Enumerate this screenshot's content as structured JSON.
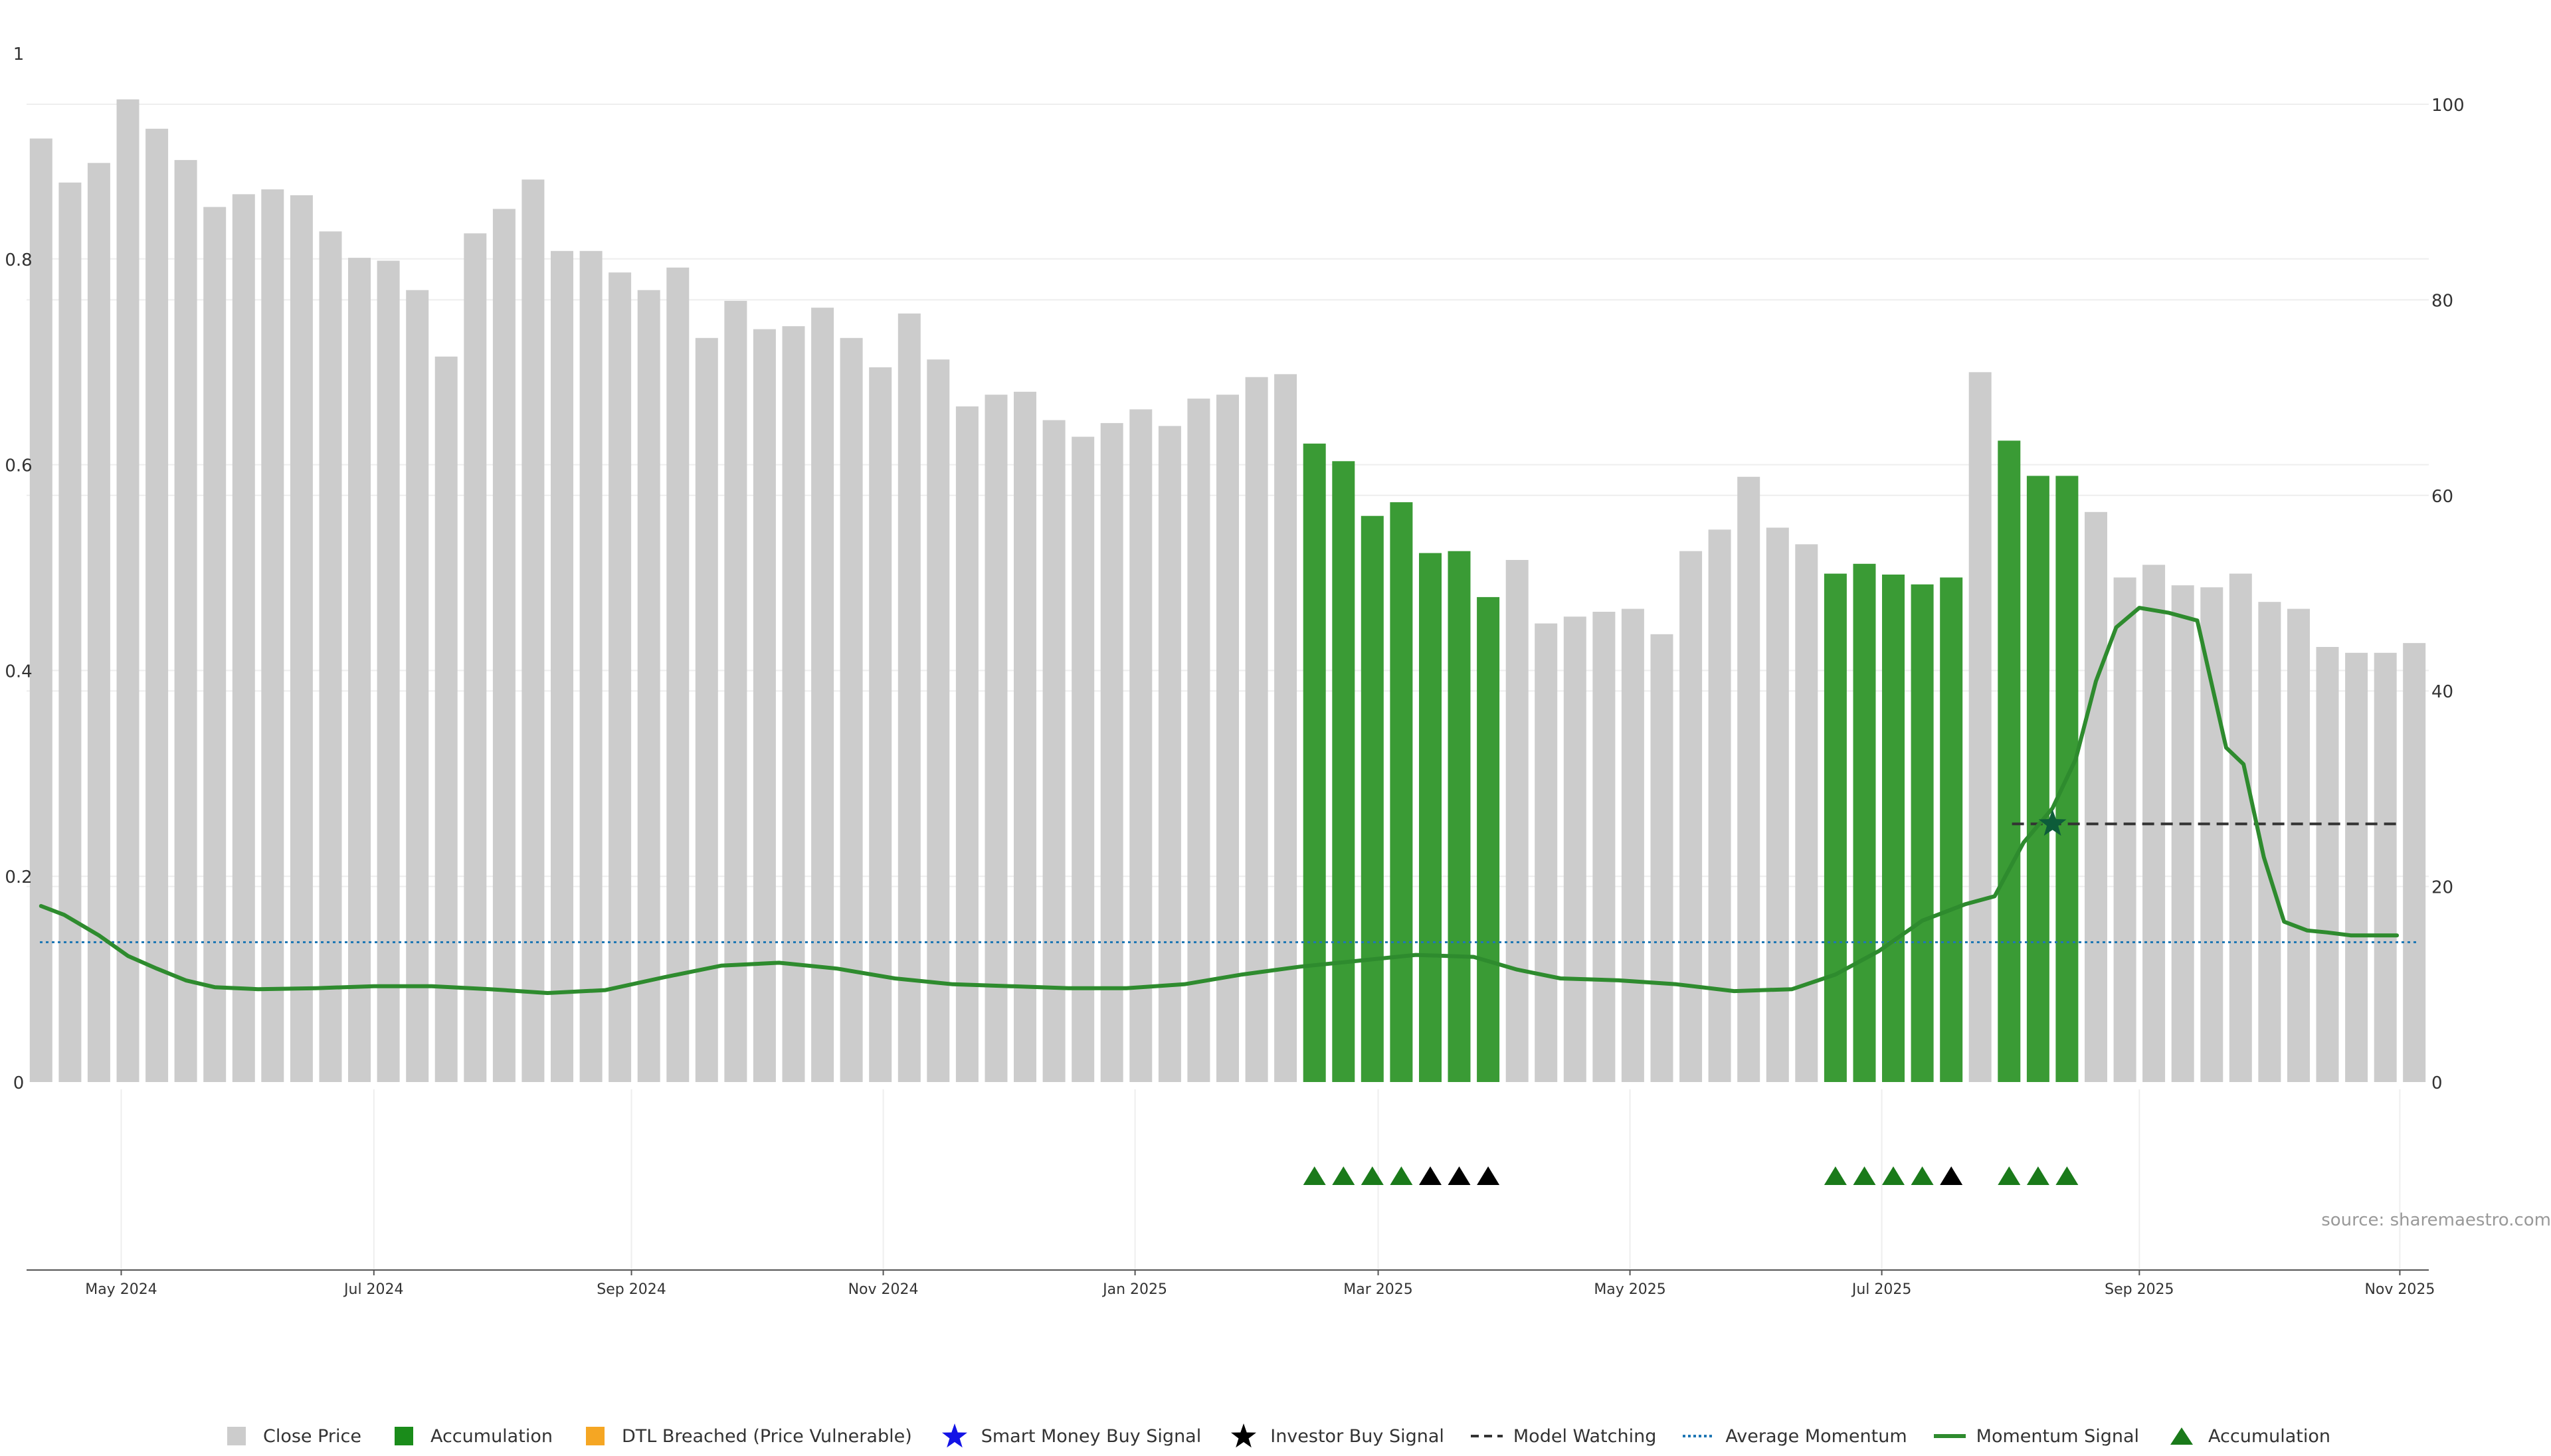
{
  "chart_data": {
    "type": "bar",
    "title": "",
    "source_note": "source: sharemaestro.com",
    "colors": {
      "close_price": "#cccccc",
      "accumulation": "#3a9b35",
      "accumulation_legend": "#1a8c1a",
      "dtl_breached": "#f5a623",
      "smart_money": "#1414e6",
      "investor_buy": "#000000",
      "model_watching": "#333333",
      "average_momentum": "#1f77b4",
      "momentum_signal": "#2e8b2e",
      "marker_star": "#0d5c3a",
      "triangle_green": "#1a7a1a",
      "triangle_black": "#000000",
      "grid": "#eeeeee",
      "axis_text": "#333333"
    },
    "left_axis": {
      "ylim": [
        0,
        1
      ],
      "ticks": [
        0,
        0.2,
        0.4,
        0.6,
        0.8,
        1
      ],
      "tick_labels": [
        "0",
        "0.2",
        "0.4",
        "0.6",
        "0.8",
        "1"
      ]
    },
    "right_axis": {
      "ylim": [
        0,
        105
      ],
      "ticks": [
        0,
        20,
        40,
        60,
        80,
        100
      ],
      "tick_labels": [
        "0",
        "20",
        "40",
        "60",
        "80",
        "100"
      ]
    },
    "x_axis": {
      "n_bars": 83,
      "tick_positions": [
        3.27,
        12.0,
        20.9,
        29.6,
        38.3,
        46.7,
        55.4,
        64.1,
        73.0,
        82.0
      ],
      "tick_labels": [
        "May 2024",
        "Jul 2024",
        "Sep 2024",
        "Nov 2024",
        "Jan 2025",
        "Mar 2025",
        "May 2025",
        "Jul 2025",
        "Sep 2025",
        "Nov 2025"
      ]
    },
    "bars": [
      {
        "v": 96.5,
        "acc": false
      },
      {
        "v": 92.0,
        "acc": false
      },
      {
        "v": 94.0,
        "acc": false
      },
      {
        "v": 100.5,
        "acc": false
      },
      {
        "v": 97.5,
        "acc": false
      },
      {
        "v": 94.3,
        "acc": false
      },
      {
        "v": 89.5,
        "acc": false
      },
      {
        "v": 90.8,
        "acc": false
      },
      {
        "v": 91.3,
        "acc": false
      },
      {
        "v": 90.7,
        "acc": false
      },
      {
        "v": 87.0,
        "acc": false
      },
      {
        "v": 84.3,
        "acc": false
      },
      {
        "v": 84.0,
        "acc": false
      },
      {
        "v": 81.0,
        "acc": false
      },
      {
        "v": 74.2,
        "acc": false
      },
      {
        "v": 86.8,
        "acc": false
      },
      {
        "v": 89.3,
        "acc": false
      },
      {
        "v": 92.3,
        "acc": false
      },
      {
        "v": 85.0,
        "acc": false
      },
      {
        "v": 85.0,
        "acc": false
      },
      {
        "v": 82.8,
        "acc": false
      },
      {
        "v": 81.0,
        "acc": false
      },
      {
        "v": 83.3,
        "acc": false
      },
      {
        "v": 76.1,
        "acc": false
      },
      {
        "v": 79.9,
        "acc": false
      },
      {
        "v": 77.0,
        "acc": false
      },
      {
        "v": 77.3,
        "acc": false
      },
      {
        "v": 79.2,
        "acc": false
      },
      {
        "v": 76.1,
        "acc": false
      },
      {
        "v": 73.1,
        "acc": false
      },
      {
        "v": 78.6,
        "acc": false
      },
      {
        "v": 73.9,
        "acc": false
      },
      {
        "v": 69.1,
        "acc": false
      },
      {
        "v": 70.3,
        "acc": false
      },
      {
        "v": 70.6,
        "acc": false
      },
      {
        "v": 67.7,
        "acc": false
      },
      {
        "v": 66.0,
        "acc": false
      },
      {
        "v": 67.4,
        "acc": false
      },
      {
        "v": 68.8,
        "acc": false
      },
      {
        "v": 67.1,
        "acc": false
      },
      {
        "v": 69.9,
        "acc": false
      },
      {
        "v": 70.3,
        "acc": false
      },
      {
        "v": 72.1,
        "acc": false
      },
      {
        "v": 72.4,
        "acc": false
      },
      {
        "v": 65.3,
        "acc": true
      },
      {
        "v": 63.5,
        "acc": true
      },
      {
        "v": 57.9,
        "acc": true
      },
      {
        "v": 59.3,
        "acc": true
      },
      {
        "v": 54.1,
        "acc": true
      },
      {
        "v": 54.3,
        "acc": true
      },
      {
        "v": 49.6,
        "acc": true
      },
      {
        "v": 53.4,
        "acc": false
      },
      {
        "v": 46.9,
        "acc": false
      },
      {
        "v": 47.6,
        "acc": false
      },
      {
        "v": 48.1,
        "acc": false
      },
      {
        "v": 48.4,
        "acc": false
      },
      {
        "v": 45.8,
        "acc": false
      },
      {
        "v": 54.3,
        "acc": false
      },
      {
        "v": 56.5,
        "acc": false
      },
      {
        "v": 61.9,
        "acc": false
      },
      {
        "v": 56.7,
        "acc": false
      },
      {
        "v": 55.0,
        "acc": false
      },
      {
        "v": 52.0,
        "acc": true
      },
      {
        "v": 53.0,
        "acc": true
      },
      {
        "v": 51.9,
        "acc": true
      },
      {
        "v": 50.9,
        "acc": true
      },
      {
        "v": 51.6,
        "acc": true
      },
      {
        "v": 72.6,
        "acc": false
      },
      {
        "v": 65.6,
        "acc": true
      },
      {
        "v": 62.0,
        "acc": true
      },
      {
        "v": 62.0,
        "acc": true
      },
      {
        "v": 58.3,
        "acc": false
      },
      {
        "v": 51.6,
        "acc": false
      },
      {
        "v": 52.9,
        "acc": false
      },
      {
        "v": 50.8,
        "acc": false
      },
      {
        "v": 50.6,
        "acc": false
      },
      {
        "v": 52.0,
        "acc": false
      },
      {
        "v": 49.1,
        "acc": false
      },
      {
        "v": 48.4,
        "acc": false
      },
      {
        "v": 44.5,
        "acc": false
      },
      {
        "v": 43.9,
        "acc": false
      },
      {
        "v": 43.9,
        "acc": false
      },
      {
        "v": 44.9,
        "acc": false
      }
    ],
    "average_momentum": {
      "value": 14.3
    },
    "momentum_signal": {
      "x": [
        0.5,
        1.3,
        2.5,
        3.5,
        4.5,
        5.5,
        6.5,
        8.0,
        10.0,
        12.0,
        14.0,
        16.0,
        18.0,
        20.0,
        22.0,
        24.0,
        26.0,
        28.0,
        30.0,
        32.0,
        34.0,
        36.0,
        38.0,
        40.0,
        42.0,
        44.0,
        46.0,
        48.0,
        50.0,
        51.5,
        53.0,
        55.0,
        57.0,
        59.0,
        61.0,
        62.5,
        64.0,
        65.5,
        67.0,
        68.0,
        69.0,
        70.0,
        70.8,
        71.5,
        72.2,
        73.0,
        74.0,
        75.0,
        76.0,
        76.6,
        77.3,
        78.0,
        78.8,
        79.5,
        80.3,
        81.1,
        81.9
      ],
      "y": [
        18.0,
        17.1,
        15.0,
        12.9,
        11.6,
        10.4,
        9.7,
        9.5,
        9.6,
        9.8,
        9.8,
        9.5,
        9.1,
        9.4,
        10.7,
        11.9,
        12.2,
        11.6,
        10.6,
        10.0,
        9.8,
        9.6,
        9.6,
        10.0,
        11.0,
        11.8,
        12.4,
        13.0,
        12.8,
        11.5,
        10.6,
        10.4,
        10.0,
        9.3,
        9.5,
        11.0,
        13.4,
        16.5,
        18.2,
        19.0,
        24.5,
        28.0,
        33.0,
        41.0,
        46.5,
        48.5,
        48.0,
        47.2,
        34.2,
        32.5,
        23.0,
        16.4,
        15.5,
        15.3,
        15.0,
        15.0,
        15.0
      ]
    },
    "model_watching": {
      "x_start": 68.6,
      "x_end": 82.0,
      "value": 26.4
    },
    "markers": [
      {
        "type": "star",
        "x": 70.0,
        "y": 26.4
      }
    ],
    "signal_triangles": [
      {
        "x": 44.5,
        "color": "green"
      },
      {
        "x": 45.5,
        "color": "green"
      },
      {
        "x": 46.5,
        "color": "green"
      },
      {
        "x": 47.5,
        "color": "green"
      },
      {
        "x": 48.5,
        "color": "black"
      },
      {
        "x": 49.5,
        "color": "black"
      },
      {
        "x": 50.5,
        "color": "black"
      },
      {
        "x": 62.5,
        "color": "green"
      },
      {
        "x": 63.5,
        "color": "green"
      },
      {
        "x": 64.5,
        "color": "green"
      },
      {
        "x": 65.5,
        "color": "green"
      },
      {
        "x": 66.5,
        "color": "black"
      },
      {
        "x": 68.5,
        "color": "green"
      },
      {
        "x": 69.5,
        "color": "green"
      },
      {
        "x": 70.5,
        "color": "green"
      }
    ],
    "legend": [
      {
        "label": "Close Price",
        "symbol": "square",
        "color_key": "close_price"
      },
      {
        "label": "Accumulation",
        "symbol": "square",
        "color_key": "accumulation_legend"
      },
      {
        "label": "DTL Breached (Price Vulnerable)",
        "symbol": "square",
        "color_key": "dtl_breached"
      },
      {
        "label": "Smart Money Buy Signal",
        "symbol": "star",
        "color_key": "smart_money"
      },
      {
        "label": "Investor Buy Signal",
        "symbol": "star",
        "color_key": "investor_buy"
      },
      {
        "label": "Model Watching",
        "symbol": "dash",
        "color_key": "model_watching"
      },
      {
        "label": "Average Momentum",
        "symbol": "dot",
        "color_key": "average_momentum"
      },
      {
        "label": "Momentum Signal",
        "symbol": "line",
        "color_key": "momentum_signal"
      },
      {
        "label": "Accumulation",
        "symbol": "triangle",
        "color_key": "triangle_green"
      }
    ]
  }
}
